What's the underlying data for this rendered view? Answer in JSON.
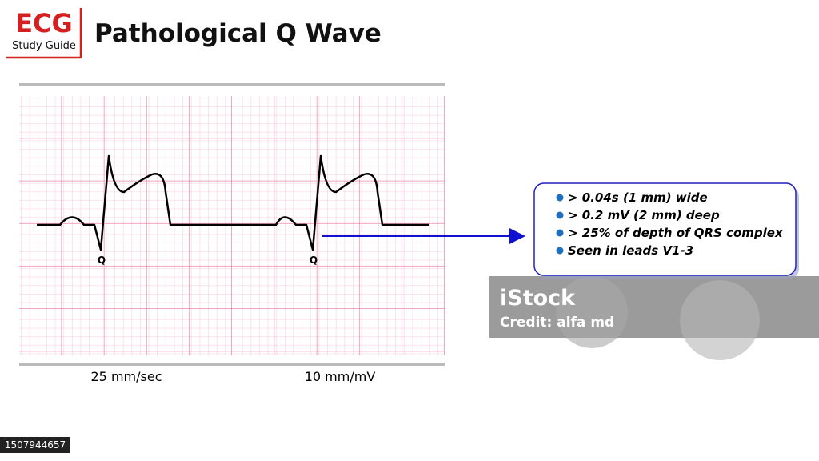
{
  "logo": {
    "title": "ECG",
    "subtitle": "Study Guide"
  },
  "header": {
    "title": "Pathological Q Wave"
  },
  "diagram": {
    "q_labels": [
      "Q",
      "Q"
    ],
    "captions": [
      "25 mm/sec",
      "10 mm/mV"
    ]
  },
  "info_box": {
    "items": [
      "> 0.04s (1 mm) wide",
      "> 0.2 mV (2 mm) deep",
      "> 25% of depth of QRS complex",
      "Seen in leads V1-3"
    ]
  },
  "watermark": {
    "brand": "iStock",
    "credit": "Credit: alfa md"
  },
  "image_id": "1507944657"
}
